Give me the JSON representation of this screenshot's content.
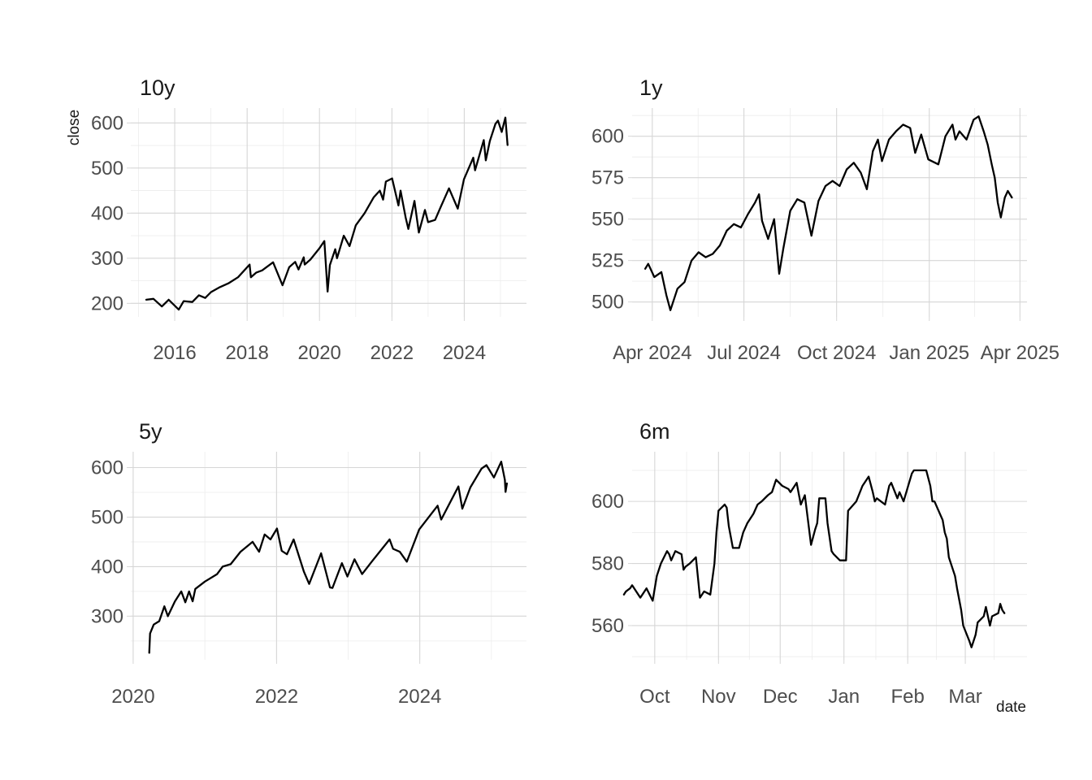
{
  "chart_data": [
    {
      "type": "line",
      "title": "10y",
      "ylabel": "close",
      "xlabel": "",
      "grid": true,
      "x_ticks": [
        {
          "label": "2016",
          "date": "2016-01-01"
        },
        {
          "label": "2018",
          "date": "2018-01-01"
        },
        {
          "label": "2020",
          "date": "2020-01-01"
        },
        {
          "label": "2022",
          "date": "2022-01-01"
        },
        {
          "label": "2024",
          "date": "2024-01-01"
        }
      ],
      "xlim": [
        "2014-10-15",
        "2025-09-20"
      ],
      "y_ticks": [
        200,
        300,
        400,
        500,
        600
      ],
      "ylim": [
        170,
        633
      ],
      "series": [
        {
          "x": [
            "2015-03-20",
            "2015-06-01",
            "2015-08-24",
            "2015-11-01",
            "2016-02-11",
            "2016-04-01",
            "2016-06-27",
            "2016-09-01",
            "2016-11-04",
            "2017-01-01",
            "2017-04-01",
            "2017-07-01",
            "2017-10-01",
            "2018-01-26",
            "2018-02-08",
            "2018-04-01",
            "2018-06-01",
            "2018-09-20",
            "2018-12-24",
            "2019-03-01",
            "2019-05-01",
            "2019-06-03",
            "2019-07-26",
            "2019-08-05",
            "2019-10-01",
            "2019-12-31",
            "2020-02-19",
            "2020-03-23",
            "2020-04-15",
            "2020-06-08",
            "2020-06-26",
            "2020-09-02",
            "2020-10-30",
            "2021-01-01",
            "2021-04-01",
            "2021-07-01",
            "2021-09-01",
            "2021-10-04",
            "2021-11-01",
            "2022-01-03",
            "2022-03-08",
            "2022-03-29",
            "2022-05-20",
            "2022-06-16",
            "2022-08-16",
            "2022-09-30",
            "2022-11-30",
            "2023-01-01",
            "2023-03-13",
            "2023-05-01",
            "2023-07-31",
            "2023-10-27",
            "2023-12-29",
            "2024-04-01",
            "2024-04-19",
            "2024-07-16",
            "2024-08-05",
            "2024-09-15",
            "2024-11-11",
            "2024-12-06",
            "2025-01-13",
            "2025-02-19",
            "2025-03-13"
          ],
          "values": [
            208,
            210,
            193,
            208,
            186,
            205,
            203,
            218,
            212,
            225,
            236,
            245,
            258,
            286,
            258,
            268,
            273,
            291,
            240,
            280,
            292,
            275,
            302,
            286,
            297,
            322,
            338,
            226,
            285,
            320,
            300,
            350,
            327,
            373,
            400,
            435,
            450,
            430,
            470,
            477,
            417,
            450,
            390,
            365,
            427,
            357,
            407,
            380,
            385,
            410,
            455,
            410,
            475,
            523,
            495,
            562,
            517,
            560,
            598,
            605,
            580,
            612,
            551
          ]
        }
      ]
    },
    {
      "type": "line",
      "title": "1y",
      "xlabel": "",
      "ylabel": "",
      "grid": true,
      "x_ticks": [
        {
          "label": "Apr 2024",
          "date": "2024-04-01"
        },
        {
          "label": "Jul 2024",
          "date": "2024-07-01"
        },
        {
          "label": "Oct 2024",
          "date": "2024-10-01"
        },
        {
          "label": "Jan 2025",
          "date": "2025-01-01"
        },
        {
          "label": "Apr 2025",
          "date": "2025-04-01"
        }
      ],
      "xlim": [
        "2024-03-12",
        "2025-04-08"
      ],
      "y_ticks": [
        500,
        525,
        550,
        575,
        600
      ],
      "ylim": [
        491,
        617
      ],
      "series": [
        {
          "x": [
            "2024-03-25",
            "2024-03-28",
            "2024-04-03",
            "2024-04-10",
            "2024-04-15",
            "2024-04-19",
            "2024-04-26",
            "2024-05-03",
            "2024-05-10",
            "2024-05-17",
            "2024-05-24",
            "2024-05-31",
            "2024-06-07",
            "2024-06-14",
            "2024-06-21",
            "2024-06-28",
            "2024-07-05",
            "2024-07-12",
            "2024-07-16",
            "2024-07-19",
            "2024-07-25",
            "2024-07-31",
            "2024-08-05",
            "2024-08-09",
            "2024-08-16",
            "2024-08-23",
            "2024-08-30",
            "2024-09-06",
            "2024-09-13",
            "2024-09-20",
            "2024-09-27",
            "2024-10-04",
            "2024-10-11",
            "2024-10-18",
            "2024-10-25",
            "2024-10-31",
            "2024-11-06",
            "2024-11-11",
            "2024-11-15",
            "2024-11-22",
            "2024-11-29",
            "2024-12-06",
            "2024-12-13",
            "2024-12-18",
            "2024-12-24",
            "2024-12-31",
            "2025-01-10",
            "2025-01-17",
            "2025-01-24",
            "2025-01-27",
            "2025-01-31",
            "2025-02-07",
            "2025-02-14",
            "2025-02-19",
            "2025-02-24",
            "2025-02-28",
            "2025-03-04",
            "2025-03-07",
            "2025-03-10",
            "2025-03-13",
            "2025-03-17",
            "2025-03-20",
            "2025-03-24"
          ],
          "values": [
            520,
            523,
            515,
            518,
            504,
            495,
            508,
            512,
            525,
            530,
            527,
            529,
            534,
            543,
            547,
            545,
            553,
            560,
            565,
            549,
            538,
            550,
            517,
            532,
            555,
            562,
            560,
            540,
            561,
            570,
            573,
            570,
            580,
            584,
            578,
            568,
            591,
            598,
            585,
            598,
            603,
            607,
            605,
            590,
            601,
            586,
            583,
            600,
            607,
            598,
            603,
            598,
            610,
            612,
            603,
            595,
            583,
            575,
            560,
            551,
            563,
            567,
            563
          ]
        }
      ]
    },
    {
      "type": "line",
      "title": "5y",
      "xlabel": "",
      "ylabel": "",
      "grid": true,
      "x_ticks": [
        {
          "label": "2020",
          "date": "2020-01-01"
        },
        {
          "label": "2022",
          "date": "2022-01-01"
        },
        {
          "label": "2024",
          "date": "2024-01-01"
        }
      ],
      "xlim": [
        "2019-12-20",
        "2025-06-28"
      ],
      "y_ticks": [
        300,
        400,
        500,
        600
      ],
      "ylim": [
        212,
        632
      ],
      "series": [
        {
          "x": [
            "2020-03-23",
            "2020-03-27",
            "2020-04-15",
            "2020-05-13",
            "2020-06-08",
            "2020-06-26",
            "2020-08-01",
            "2020-09-02",
            "2020-09-23",
            "2020-10-12",
            "2020-10-30",
            "2020-11-13",
            "2021-01-01",
            "2021-03-04",
            "2021-04-01",
            "2021-05-12",
            "2021-07-01",
            "2021-09-01",
            "2021-10-04",
            "2021-11-01",
            "2021-12-01",
            "2022-01-03",
            "2022-01-27",
            "2022-02-23",
            "2022-03-29",
            "2022-05-20",
            "2022-06-16",
            "2022-08-16",
            "2022-09-30",
            "2022-10-13",
            "2022-11-30",
            "2022-12-28",
            "2023-02-02",
            "2023-03-13",
            "2023-05-01",
            "2023-07-31",
            "2023-08-18",
            "2023-09-21",
            "2023-10-27",
            "2023-12-29",
            "2024-04-01",
            "2024-04-19",
            "2024-07-16",
            "2024-08-05",
            "2024-09-15",
            "2024-11-11",
            "2024-12-06",
            "2025-01-13",
            "2025-02-19",
            "2025-03-10",
            "2025-03-13",
            "2025-03-20"
          ],
          "values": [
            226,
            265,
            283,
            290,
            320,
            300,
            330,
            350,
            328,
            350,
            330,
            355,
            370,
            385,
            400,
            405,
            430,
            450,
            430,
            465,
            455,
            477,
            432,
            425,
            455,
            390,
            365,
            427,
            358,
            357,
            407,
            380,
            415,
            385,
            410,
            455,
            436,
            430,
            410,
            475,
            523,
            495,
            562,
            517,
            560,
            598,
            605,
            580,
            612,
            575,
            551,
            568
          ]
        }
      ]
    },
    {
      "type": "line",
      "title": "6m",
      "xlabel": "date",
      "ylabel": "",
      "grid": true,
      "x_ticks": [
        {
          "label": "Oct",
          "date": "2024-10-01"
        },
        {
          "label": "Nov",
          "date": "2024-11-01"
        },
        {
          "label": "Dec",
          "date": "2024-12-01"
        },
        {
          "label": "Jan",
          "date": "2025-01-01"
        },
        {
          "label": "Feb",
          "date": "2025-02-01"
        },
        {
          "label": "Mar",
          "date": "2025-03-01"
        }
      ],
      "xlim": [
        "2024-09-20",
        "2025-03-31"
      ],
      "y_ticks": [
        560,
        580,
        600
      ],
      "ylim": [
        549,
        616
      ],
      "series": [
        {
          "x": [
            "2024-09-16",
            "2024-09-17",
            "2024-09-19",
            "2024-09-20",
            "2024-09-24",
            "2024-09-27",
            "2024-09-30",
            "2024-10-02",
            "2024-10-04",
            "2024-10-07",
            "2024-10-08",
            "2024-10-09",
            "2024-10-11",
            "2024-10-14",
            "2024-10-15",
            "2024-10-16",
            "2024-10-18",
            "2024-10-21",
            "2024-10-23",
            "2024-10-25",
            "2024-10-28",
            "2024-10-30",
            "2024-10-31",
            "2024-11-01",
            "2024-11-04",
            "2024-11-05",
            "2024-11-06",
            "2024-11-08",
            "2024-11-11",
            "2024-11-13",
            "2024-11-15",
            "2024-11-18",
            "2024-11-20",
            "2024-11-22",
            "2024-11-25",
            "2024-11-27",
            "2024-11-29",
            "2024-12-02",
            "2024-12-05",
            "2024-12-06",
            "2024-12-09",
            "2024-12-11",
            "2024-12-13",
            "2024-12-16",
            "2024-12-18",
            "2024-12-19",
            "2024-12-20",
            "2024-12-23",
            "2024-12-24",
            "2024-12-26",
            "2024-12-27",
            "2024-12-30",
            "2025-01-02",
            "2025-01-03",
            "2025-01-07",
            "2025-01-10",
            "2025-01-13",
            "2025-01-15",
            "2025-01-16",
            "2025-01-17",
            "2025-01-21",
            "2025-01-23",
            "2025-01-24",
            "2025-01-27",
            "2025-01-28",
            "2025-01-30",
            "2025-02-03",
            "2025-02-04",
            "2025-02-06",
            "2025-02-10",
            "2025-02-12",
            "2025-02-13",
            "2025-02-14",
            "2025-02-18",
            "2025-02-19",
            "2025-02-20",
            "2025-02-21",
            "2025-02-24",
            "2025-02-25",
            "2025-02-27",
            "2025-02-28",
            "2025-03-03",
            "2025-03-04",
            "2025-03-06",
            "2025-03-07",
            "2025-03-10",
            "2025-03-11",
            "2025-03-13",
            "2025-03-14",
            "2025-03-17",
            "2025-03-18",
            "2025-03-19",
            "2025-03-20"
          ],
          "values": [
            570,
            571,
            572,
            573,
            569,
            572,
            568,
            576,
            580,
            584,
            583,
            581,
            584,
            583,
            578,
            579,
            580,
            582,
            569,
            571,
            570,
            580,
            590,
            597,
            599,
            598,
            592,
            585,
            585,
            590,
            593,
            596,
            599,
            600,
            602,
            603,
            607,
            605,
            604,
            603,
            606,
            599,
            602,
            586,
            591,
            593,
            601,
            601,
            593,
            584,
            583,
            581,
            581,
            597,
            600,
            605,
            608,
            603,
            600,
            601,
            599,
            605,
            606,
            601,
            603,
            600,
            609,
            610,
            610,
            610,
            605,
            600,
            600,
            594,
            590,
            588,
            582,
            576,
            572,
            565,
            560,
            555,
            553,
            557,
            561,
            563,
            566,
            560,
            563,
            564,
            567,
            565,
            564
          ]
        }
      ]
    }
  ]
}
